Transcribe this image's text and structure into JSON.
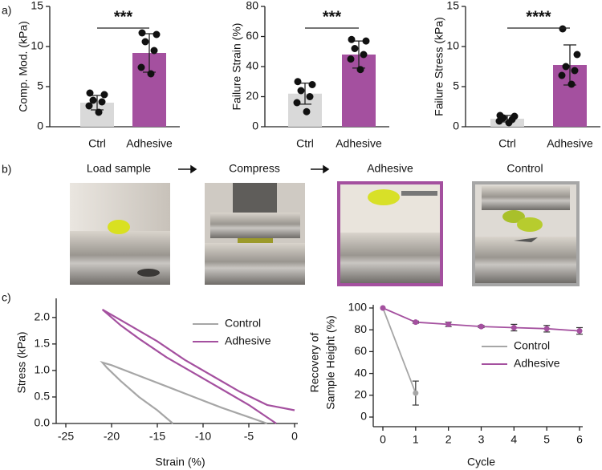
{
  "panel_labels": [
    "a)",
    "b)",
    "c)"
  ],
  "photos": [
    {
      "label": "Load sample"
    },
    {
      "label": "Compress"
    },
    {
      "label": "Adhesive"
    },
    {
      "label": "Control"
    }
  ],
  "chart_data": [
    {
      "type": "bar",
      "y_label": "Comp. Mod. (kPa)",
      "categories": [
        "Ctrl",
        "Adhesive"
      ],
      "values": [
        3.0,
        9.2
      ],
      "errors": [
        0.9,
        2.4
      ],
      "points": [
        [
          4.2,
          4.0,
          3.3,
          3.1,
          2.6,
          1.8
        ],
        [
          11.7,
          11.5,
          10.6,
          9.5,
          7.4,
          6.6
        ]
      ],
      "colors": [
        "#d9d9d9",
        "#a4509f"
      ],
      "significance": "***",
      "ylim": [
        0,
        15
      ],
      "yticks": [
        0,
        5,
        10,
        15
      ]
    },
    {
      "type": "bar",
      "y_label": "Failure Strain (%)",
      "categories": [
        "Ctrl",
        "Adhesive"
      ],
      "values": [
        22,
        48
      ],
      "errors": [
        7,
        9
      ],
      "points": [
        [
          30,
          28,
          24,
          20,
          16,
          10
        ],
        [
          58,
          57,
          52,
          48,
          45,
          38
        ]
      ],
      "colors": [
        "#d9d9d9",
        "#a4509f"
      ],
      "significance": "***",
      "ylim": [
        0,
        80
      ],
      "yticks": [
        0,
        20,
        40,
        60,
        80
      ]
    },
    {
      "type": "bar",
      "y_label": "Failure Stress (kPa)",
      "categories": [
        "Ctrl",
        "Adhesive"
      ],
      "values": [
        1.0,
        7.7
      ],
      "errors": [
        0.4,
        2.5
      ],
      "points": [
        [
          1.4,
          1.3,
          1.1,
          0.9,
          0.7,
          0.5
        ],
        [
          12.2,
          9.0,
          7.5,
          7.0,
          6.4,
          5.3
        ]
      ],
      "colors": [
        "#d9d9d9",
        "#a4509f"
      ],
      "significance": "****",
      "ylim": [
        0,
        15
      ],
      "yticks": [
        0,
        5,
        10,
        15
      ]
    },
    {
      "type": "line",
      "x_label": "Strain (%)",
      "y_label": "Stress (kPa)",
      "xlim": [
        -25,
        0
      ],
      "xticks": [
        -25,
        -20,
        -15,
        -10,
        -5,
        0
      ],
      "ylim": [
        0,
        2.3
      ],
      "yticks": [
        {
          "value": 0,
          "label": "0.0"
        },
        {
          "value": 0.5,
          "label": "0.5"
        },
        {
          "value": 1,
          "label": "1.0"
        },
        {
          "value": 1.5,
          "label": "1.5"
        },
        {
          "value": 2,
          "label": "2.0"
        }
      ],
      "legend": "upper right",
      "series": [
        {
          "name": "Control",
          "color": "#a6a6a6",
          "x": [
            -13.3,
            -15,
            -17,
            -19,
            -20.5,
            -21,
            -20,
            -17,
            -14,
            -11,
            -8,
            -5,
            -3
          ],
          "values": [
            0,
            0.25,
            0.5,
            0.8,
            1.05,
            1.15,
            1.1,
            0.9,
            0.7,
            0.5,
            0.3,
            0.12,
            0
          ]
        },
        {
          "name": "Adhesive",
          "color": "#a4509f",
          "x": [
            -2,
            -5,
            -8,
            -11,
            -14,
            -17,
            -19,
            -21,
            -18,
            -15,
            -12,
            -9,
            -6,
            -3,
            0
          ],
          "values": [
            0,
            0.35,
            0.65,
            0.95,
            1.25,
            1.6,
            1.85,
            2.15,
            1.85,
            1.55,
            1.2,
            0.9,
            0.6,
            0.35,
            0.25
          ]
        }
      ]
    },
    {
      "type": "line",
      "x_label": "Cycle",
      "y_label": [
        "Recovery of",
        "Sample Height (%)"
      ],
      "xlim": [
        0,
        6
      ],
      "xticks": [
        0,
        1,
        2,
        3,
        4,
        5,
        6
      ],
      "ylim": [
        0,
        100
      ],
      "yticks": [
        0,
        20,
        40,
        60,
        80,
        100
      ],
      "legend": "center right",
      "series": [
        {
          "name": "Control",
          "color": "#a6a6a6",
          "x": [
            0,
            1
          ],
          "values": [
            100,
            22
          ],
          "errors": [
            0,
            11
          ]
        },
        {
          "name": "Adhesive",
          "color": "#a4509f",
          "x": [
            0,
            1,
            2,
            3,
            4,
            5,
            6
          ],
          "values": [
            100,
            87,
            85,
            83,
            82,
            81,
            79
          ],
          "errors": [
            0,
            1,
            2,
            1,
            3,
            3,
            3
          ]
        }
      ]
    }
  ]
}
